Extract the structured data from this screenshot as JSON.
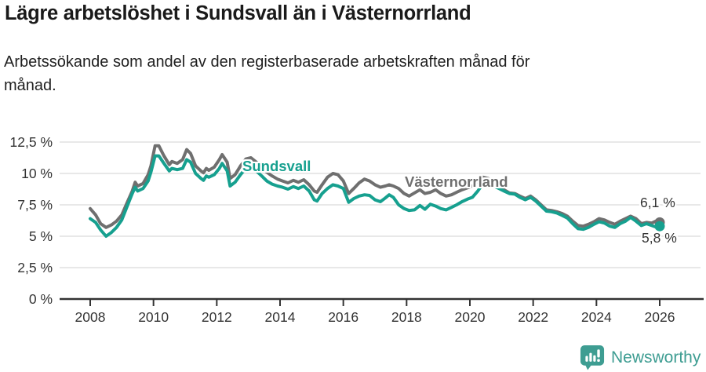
{
  "header": {
    "title": "Lägre arbetslöshet i Sundsvall än i Västernorrland",
    "subtitle": "Arbetssökande som andel av den registerbaserade arbetskraften månad för månad.",
    "subtitle_lines": [
      "Arbetssökande som andel av den registerbaserade arbetskraften månad för",
      "månad."
    ]
  },
  "branding": {
    "logo_text": "Newsworthy",
    "logo_icon": "newsworthy-bar-chart-bubble-icon",
    "logo_color": "#3E9D92"
  },
  "chart_data": {
    "type": "line",
    "title": "Lägre arbetslöshet i Sundsvall än i Västernorrland",
    "subtitle": "Arbetssökande som andel av den registerbaserade arbetskraften månad för månad.",
    "unit": "%",
    "decimal_style": "comma",
    "grid": true,
    "legend_position": "inline-labels",
    "style": {
      "grid_color": "#DBDBDB",
      "axis_color": "#333333",
      "text_color": "#333333"
    },
    "x_axis": {
      "range": [
        2007.85,
        2027.3
      ],
      "ticks": [
        2008,
        2010,
        2012,
        2014,
        2016,
        2018,
        2020,
        2022,
        2024,
        2026
      ]
    },
    "y_axis": {
      "range": [
        0,
        12.5
      ],
      "ticks": [
        {
          "value": 12.5,
          "label": "12,5 %"
        },
        {
          "value": 10,
          "label": "10 %"
        },
        {
          "value": 7.5,
          "label": "7,5 %"
        },
        {
          "value": 5,
          "label": "5 %"
        },
        {
          "value": 2.5,
          "label": "2,5 %"
        },
        {
          "value": 0,
          "label": "0 %"
        }
      ]
    },
    "series": [
      {
        "name": "Västernorrland",
        "color": "#6F6F6F",
        "end_value": 6.1,
        "end_label": "6,1 %",
        "points": [
          [
            2008.0,
            7.2
          ],
          [
            2008.17,
            6.7
          ],
          [
            2008.33,
            6.0
          ],
          [
            2008.5,
            5.7
          ],
          [
            2008.67,
            5.9
          ],
          [
            2008.83,
            6.2
          ],
          [
            2009.0,
            6.7
          ],
          [
            2009.17,
            7.7
          ],
          [
            2009.33,
            8.6
          ],
          [
            2009.42,
            9.3
          ],
          [
            2009.5,
            9.0
          ],
          [
            2009.67,
            9.2
          ],
          [
            2009.83,
            9.9
          ],
          [
            2009.92,
            10.6
          ],
          [
            2010.05,
            12.2
          ],
          [
            2010.17,
            12.2
          ],
          [
            2010.33,
            11.4
          ],
          [
            2010.5,
            10.7
          ],
          [
            2010.58,
            10.95
          ],
          [
            2010.75,
            10.8
          ],
          [
            2010.92,
            11.1
          ],
          [
            2011.05,
            11.9
          ],
          [
            2011.17,
            11.6
          ],
          [
            2011.33,
            10.6
          ],
          [
            2011.5,
            10.2
          ],
          [
            2011.58,
            10.05
          ],
          [
            2011.67,
            10.4
          ],
          [
            2011.75,
            10.25
          ],
          [
            2011.92,
            10.5
          ],
          [
            2012.08,
            11.1
          ],
          [
            2012.17,
            11.5
          ],
          [
            2012.33,
            10.9
          ],
          [
            2012.42,
            9.6
          ],
          [
            2012.58,
            9.9
          ],
          [
            2012.75,
            10.6
          ],
          [
            2012.92,
            11.15
          ],
          [
            2013.08,
            11.25
          ],
          [
            2013.25,
            10.9
          ],
          [
            2013.42,
            10.5
          ],
          [
            2013.58,
            10.1
          ],
          [
            2013.75,
            9.8
          ],
          [
            2013.92,
            9.55
          ],
          [
            2014.08,
            9.4
          ],
          [
            2014.25,
            9.25
          ],
          [
            2014.42,
            9.45
          ],
          [
            2014.58,
            9.3
          ],
          [
            2014.75,
            9.5
          ],
          [
            2014.92,
            9.1
          ],
          [
            2015.08,
            8.6
          ],
          [
            2015.17,
            8.5
          ],
          [
            2015.33,
            9.1
          ],
          [
            2015.5,
            9.7
          ],
          [
            2015.67,
            10.0
          ],
          [
            2015.83,
            9.9
          ],
          [
            2016.0,
            9.4
          ],
          [
            2016.17,
            8.4
          ],
          [
            2016.33,
            8.8
          ],
          [
            2016.5,
            9.25
          ],
          [
            2016.67,
            9.55
          ],
          [
            2016.83,
            9.4
          ],
          [
            2017.0,
            9.1
          ],
          [
            2017.17,
            8.9
          ],
          [
            2017.33,
            9.0
          ],
          [
            2017.45,
            9.1
          ],
          [
            2017.58,
            9.0
          ],
          [
            2017.75,
            8.8
          ],
          [
            2017.92,
            8.4
          ],
          [
            2018.08,
            8.2
          ],
          [
            2018.25,
            8.45
          ],
          [
            2018.42,
            8.7
          ],
          [
            2018.58,
            8.4
          ],
          [
            2018.75,
            8.5
          ],
          [
            2018.92,
            8.7
          ],
          [
            2019.08,
            8.4
          ],
          [
            2019.25,
            8.2
          ],
          [
            2019.42,
            8.3
          ],
          [
            2019.58,
            8.5
          ],
          [
            2019.75,
            8.7
          ],
          [
            2019.92,
            8.85
          ],
          [
            2020.08,
            9.0
          ],
          [
            2020.25,
            9.4
          ],
          [
            2020.42,
            9.7
          ],
          [
            2020.58,
            9.6
          ],
          [
            2020.75,
            9.3
          ],
          [
            2020.92,
            9.0
          ],
          [
            2021.08,
            8.7
          ],
          [
            2021.25,
            8.45
          ],
          [
            2021.42,
            8.4
          ],
          [
            2021.58,
            8.2
          ],
          [
            2021.75,
            8.0
          ],
          [
            2021.92,
            8.2
          ],
          [
            2022.08,
            7.9
          ],
          [
            2022.25,
            7.5
          ],
          [
            2022.42,
            7.1
          ],
          [
            2022.58,
            7.05
          ],
          [
            2022.75,
            6.95
          ],
          [
            2022.92,
            6.8
          ],
          [
            2023.08,
            6.6
          ],
          [
            2023.25,
            6.2
          ],
          [
            2023.42,
            5.85
          ],
          [
            2023.58,
            5.8
          ],
          [
            2023.75,
            5.95
          ],
          [
            2023.92,
            6.15
          ],
          [
            2024.08,
            6.4
          ],
          [
            2024.25,
            6.3
          ],
          [
            2024.42,
            6.1
          ],
          [
            2024.58,
            5.95
          ],
          [
            2024.75,
            6.2
          ],
          [
            2024.92,
            6.4
          ],
          [
            2025.08,
            6.6
          ],
          [
            2025.25,
            6.4
          ],
          [
            2025.42,
            6.0
          ],
          [
            2025.58,
            6.1
          ],
          [
            2025.75,
            6.05
          ],
          [
            2025.92,
            6.25
          ],
          [
            2026.0,
            6.1
          ]
        ]
      },
      {
        "name": "Sundsvall",
        "color": "#16A08F",
        "end_value": 5.8,
        "end_label": "5,8 %",
        "points": [
          [
            2008.0,
            6.4
          ],
          [
            2008.17,
            6.1
          ],
          [
            2008.33,
            5.5
          ],
          [
            2008.5,
            5.0
          ],
          [
            2008.67,
            5.3
          ],
          [
            2008.83,
            5.7
          ],
          [
            2009.0,
            6.3
          ],
          [
            2009.17,
            7.4
          ],
          [
            2009.33,
            8.4
          ],
          [
            2009.42,
            8.9
          ],
          [
            2009.5,
            8.6
          ],
          [
            2009.67,
            8.8
          ],
          [
            2009.83,
            9.4
          ],
          [
            2009.92,
            10.1
          ],
          [
            2010.05,
            11.4
          ],
          [
            2010.17,
            11.4
          ],
          [
            2010.33,
            10.8
          ],
          [
            2010.5,
            10.2
          ],
          [
            2010.58,
            10.4
          ],
          [
            2010.75,
            10.3
          ],
          [
            2010.92,
            10.4
          ],
          [
            2011.05,
            11.1
          ],
          [
            2011.17,
            10.9
          ],
          [
            2011.33,
            10.0
          ],
          [
            2011.5,
            9.6
          ],
          [
            2011.58,
            9.45
          ],
          [
            2011.67,
            9.8
          ],
          [
            2011.75,
            9.7
          ],
          [
            2011.92,
            9.9
          ],
          [
            2012.08,
            10.4
          ],
          [
            2012.17,
            10.8
          ],
          [
            2012.33,
            10.2
          ],
          [
            2012.42,
            9.0
          ],
          [
            2012.58,
            9.3
          ],
          [
            2012.75,
            9.9
          ],
          [
            2012.92,
            10.4
          ],
          [
            2013.08,
            10.5
          ],
          [
            2013.25,
            10.2
          ],
          [
            2013.42,
            9.8
          ],
          [
            2013.58,
            9.4
          ],
          [
            2013.75,
            9.15
          ],
          [
            2013.92,
            9.0
          ],
          [
            2014.08,
            8.9
          ],
          [
            2014.25,
            8.75
          ],
          [
            2014.42,
            8.95
          ],
          [
            2014.58,
            8.8
          ],
          [
            2014.75,
            9.0
          ],
          [
            2014.92,
            8.6
          ],
          [
            2015.08,
            7.9
          ],
          [
            2015.17,
            7.8
          ],
          [
            2015.33,
            8.4
          ],
          [
            2015.5,
            8.8
          ],
          [
            2015.67,
            9.1
          ],
          [
            2015.83,
            9.0
          ],
          [
            2016.0,
            8.8
          ],
          [
            2016.17,
            7.7
          ],
          [
            2016.33,
            8.0
          ],
          [
            2016.5,
            8.2
          ],
          [
            2016.67,
            8.3
          ],
          [
            2016.83,
            8.25
          ],
          [
            2017.0,
            7.9
          ],
          [
            2017.17,
            7.75
          ],
          [
            2017.33,
            8.05
          ],
          [
            2017.45,
            8.3
          ],
          [
            2017.58,
            8.1
          ],
          [
            2017.75,
            7.5
          ],
          [
            2017.92,
            7.2
          ],
          [
            2018.08,
            7.05
          ],
          [
            2018.25,
            7.1
          ],
          [
            2018.42,
            7.45
          ],
          [
            2018.58,
            7.15
          ],
          [
            2018.75,
            7.55
          ],
          [
            2018.92,
            7.4
          ],
          [
            2019.08,
            7.2
          ],
          [
            2019.25,
            7.1
          ],
          [
            2019.42,
            7.3
          ],
          [
            2019.58,
            7.5
          ],
          [
            2019.75,
            7.75
          ],
          [
            2019.92,
            7.95
          ],
          [
            2020.08,
            8.1
          ],
          [
            2020.25,
            8.6
          ],
          [
            2020.42,
            9.2
          ],
          [
            2020.58,
            9.3
          ],
          [
            2020.75,
            9.0
          ],
          [
            2020.92,
            8.8
          ],
          [
            2021.08,
            8.6
          ],
          [
            2021.25,
            8.4
          ],
          [
            2021.42,
            8.35
          ],
          [
            2021.58,
            8.1
          ],
          [
            2021.75,
            7.9
          ],
          [
            2021.92,
            8.1
          ],
          [
            2022.08,
            7.8
          ],
          [
            2022.25,
            7.4
          ],
          [
            2022.42,
            7.0
          ],
          [
            2022.58,
            6.95
          ],
          [
            2022.75,
            6.85
          ],
          [
            2022.92,
            6.65
          ],
          [
            2023.08,
            6.45
          ],
          [
            2023.25,
            6.0
          ],
          [
            2023.42,
            5.6
          ],
          [
            2023.58,
            5.55
          ],
          [
            2023.75,
            5.7
          ],
          [
            2023.92,
            5.95
          ],
          [
            2024.08,
            6.15
          ],
          [
            2024.25,
            6.05
          ],
          [
            2024.42,
            5.8
          ],
          [
            2024.58,
            5.7
          ],
          [
            2024.75,
            6.0
          ],
          [
            2024.92,
            6.2
          ],
          [
            2025.08,
            6.5
          ],
          [
            2025.25,
            6.2
          ],
          [
            2025.42,
            5.85
          ],
          [
            2025.58,
            6.0
          ],
          [
            2025.75,
            5.85
          ],
          [
            2025.92,
            5.7
          ],
          [
            2026.0,
            5.8
          ]
        ]
      }
    ]
  }
}
